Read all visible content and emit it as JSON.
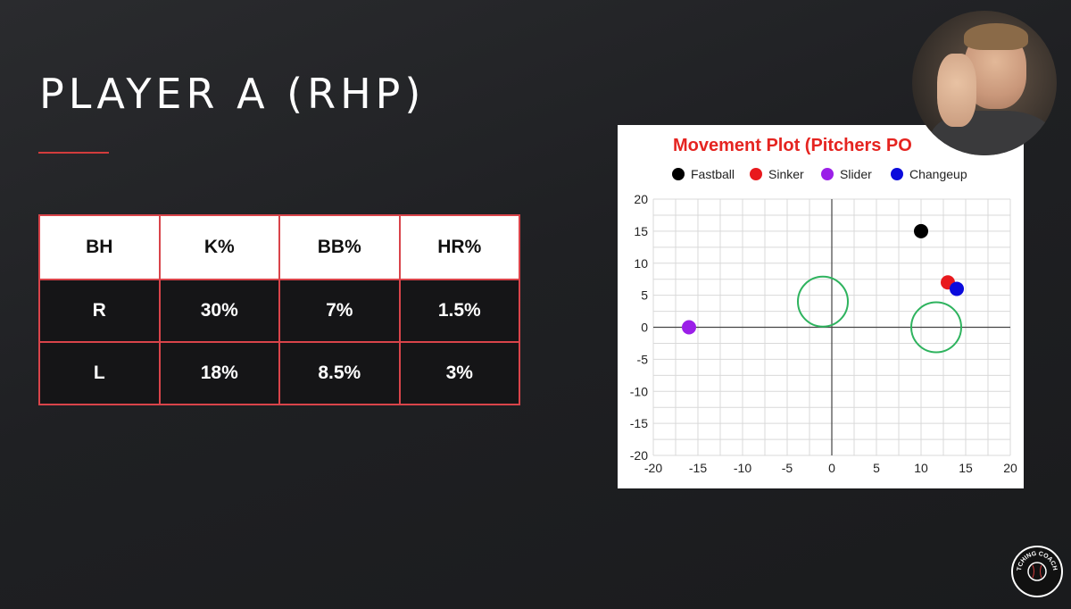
{
  "slide": {
    "title": "PLAYER A (RHP)"
  },
  "table": {
    "headers": [
      "BH",
      "K%",
      "BB%",
      "HR%"
    ],
    "rows": [
      [
        "R",
        "30%",
        "7%",
        "1.5%"
      ],
      [
        "L",
        "18%",
        "8.5%",
        "3%"
      ]
    ]
  },
  "chart_data": {
    "type": "scatter",
    "title": "Movement Plot (Pitchers PO",
    "xlim": [
      -20,
      20
    ],
    "ylim": [
      -20,
      20
    ],
    "x_ticks": [
      -20,
      -15,
      -10,
      -5,
      0,
      5,
      10,
      15,
      20
    ],
    "y_ticks": [
      -20,
      -15,
      -10,
      -5,
      0,
      5,
      10,
      15,
      20
    ],
    "grid": true,
    "legend_position": "top",
    "series": [
      {
        "name": "Fastball",
        "color": "#000000",
        "points": [
          [
            10,
            15
          ]
        ]
      },
      {
        "name": "Sinker",
        "color": "#e8191d",
        "points": [
          [
            13,
            7
          ]
        ]
      },
      {
        "name": "Slider",
        "color": "#9b1fe8",
        "points": [
          [
            -16,
            0
          ]
        ]
      },
      {
        "name": "Changeup",
        "color": "#0b0bdc",
        "points": [
          [
            14,
            6
          ]
        ]
      }
    ],
    "reference_circles": [
      {
        "cx": -1,
        "cy": 4,
        "r": 2.8,
        "color": "#2eb35e"
      },
      {
        "cx": 11.7,
        "cy": 0,
        "r": 2.8,
        "color": "#2eb35e"
      }
    ]
  },
  "logo": {
    "text": "PITCHING COACH U"
  }
}
